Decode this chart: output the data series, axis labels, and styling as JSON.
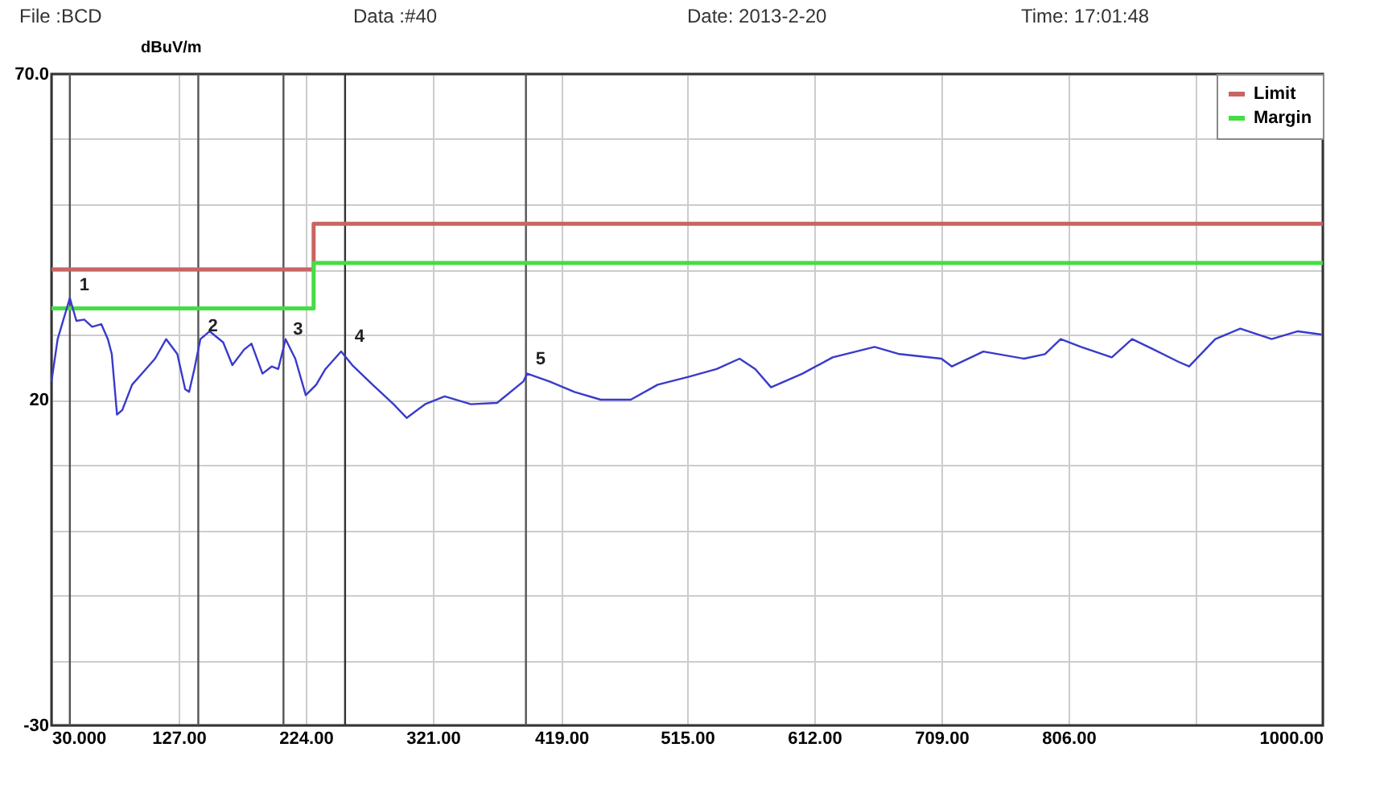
{
  "chart_data": {
    "type": "line",
    "ylabel": "dBuV/m",
    "annotations": [
      "File :BCD",
      "Data :#40",
      "Date: 2013-2-20",
      "Time: 17:01:48",
      {
        "text": "1",
        "x": 44,
        "y": 35.6
      },
      {
        "text": "2",
        "x": 142,
        "y": 29.3
      },
      {
        "text": "3",
        "x": 207,
        "y": 28.8
      },
      {
        "text": "4",
        "x": 254,
        "y": 27.7
      },
      {
        "text": "5",
        "x": 392,
        "y": 24.2
      }
    ],
    "xlim": [
      30,
      1000
    ],
    "xticks": [
      {
        "value": 30,
        "label": "30.000"
      },
      {
        "value": 127,
        "label": "127.00"
      },
      {
        "value": 224,
        "label": "224.00"
      },
      {
        "value": 321,
        "label": "321.00"
      },
      {
        "value": 419,
        "label": "419.00"
      },
      {
        "value": 515,
        "label": "515.00"
      },
      {
        "value": 612,
        "label": "612.00"
      },
      {
        "value": 709,
        "label": "709.00"
      },
      {
        "value": 806,
        "label": "806.00"
      },
      {
        "value": 903,
        "label": null
      },
      {
        "value": 1000,
        "label": "1000.00"
      }
    ],
    "ylim": [
      -30,
      70
    ],
    "yticks": [
      {
        "value": -30,
        "label": "-30"
      },
      {
        "value": -20,
        "label": null
      },
      {
        "value": -10,
        "label": null
      },
      {
        "value": 0,
        "label": null
      },
      {
        "value": 10,
        "label": null
      },
      {
        "value": 20,
        "label": "20"
      },
      {
        "value": 30,
        "label": null
      },
      {
        "value": 40,
        "label": null
      },
      {
        "value": 50,
        "label": null
      },
      {
        "value": 60,
        "label": null
      },
      {
        "value": 70,
        "label": "70.0"
      }
    ],
    "grid": true,
    "legend": "top right",
    "marker": "none",
    "line_style": "solid",
    "ref_lines": [
      {
        "axis": "x",
        "value": 44,
        "color": "#555555"
      },
      {
        "axis": "x",
        "value": 142,
        "color": "#555555"
      },
      {
        "axis": "x",
        "value": 207,
        "color": "#555555"
      },
      {
        "axis": "x",
        "value": 254,
        "color": "#333333"
      },
      {
        "axis": "x",
        "value": 392,
        "color": "#555555"
      }
    ],
    "series": [
      {
        "type": "step",
        "name": "Limit",
        "color": "#c86464",
        "x": [
          30,
          230,
          1000
        ],
        "values": [
          40,
          47,
          47
        ]
      },
      {
        "type": "step",
        "name": "Margin",
        "color": "#44dd44",
        "x": [
          30,
          230,
          1000
        ],
        "values": [
          34,
          41,
          41
        ]
      },
      {
        "type": "line",
        "color": "#3a3acc",
        "x": [
          30,
          34.7,
          44,
          49,
          55,
          61,
          68,
          73,
          76,
          80,
          84,
          91.5,
          102,
          109,
          117.5,
          126,
          132,
          135,
          139,
          143.6,
          150.7,
          161,
          168,
          177,
          182.6,
          191,
          198,
          203,
          208.6,
          216,
          224,
          232,
          239,
          251,
          259.5,
          275,
          291,
          301,
          315,
          330,
          350,
          370,
          390,
          393,
          410,
          429,
          449,
          472,
          492.5,
          516,
          537.5,
          555,
          567,
          579,
          603,
          626,
          658,
          677,
          709,
          717,
          741,
          772,
          788,
          800,
          815.5,
          839,
          854.5,
          871,
          890,
          898,
          918,
          937,
          961,
          981,
          999
        ],
        "values": [
          22.8,
          29.3,
          35.6,
          32.1,
          32.3,
          31.2,
          31.6,
          29.3,
          27.0,
          17.7,
          18.4,
          22.3,
          24.7,
          26.3,
          29.3,
          27.0,
          21.6,
          21.2,
          24.7,
          29.3,
          30.5,
          28.8,
          25.3,
          27.7,
          28.6,
          24.0,
          25.1,
          24.7,
          29.3,
          26.3,
          20.7,
          22.3,
          24.7,
          27.4,
          25.3,
          22.3,
          19.3,
          17.2,
          19.3,
          20.5,
          19.3,
          19.5,
          22.8,
          24.0,
          22.8,
          21.2,
          20.0,
          20.0,
          22.3,
          23.5,
          24.7,
          26.3,
          24.7,
          21.9,
          24.0,
          26.5,
          28.1,
          27.0,
          26.3,
          25.1,
          27.4,
          26.3,
          27.0,
          29.3,
          28.1,
          26.5,
          29.3,
          27.7,
          25.8,
          25.1,
          29.3,
          30.9,
          29.3,
          30.5,
          30.0
        ]
      }
    ]
  }
}
